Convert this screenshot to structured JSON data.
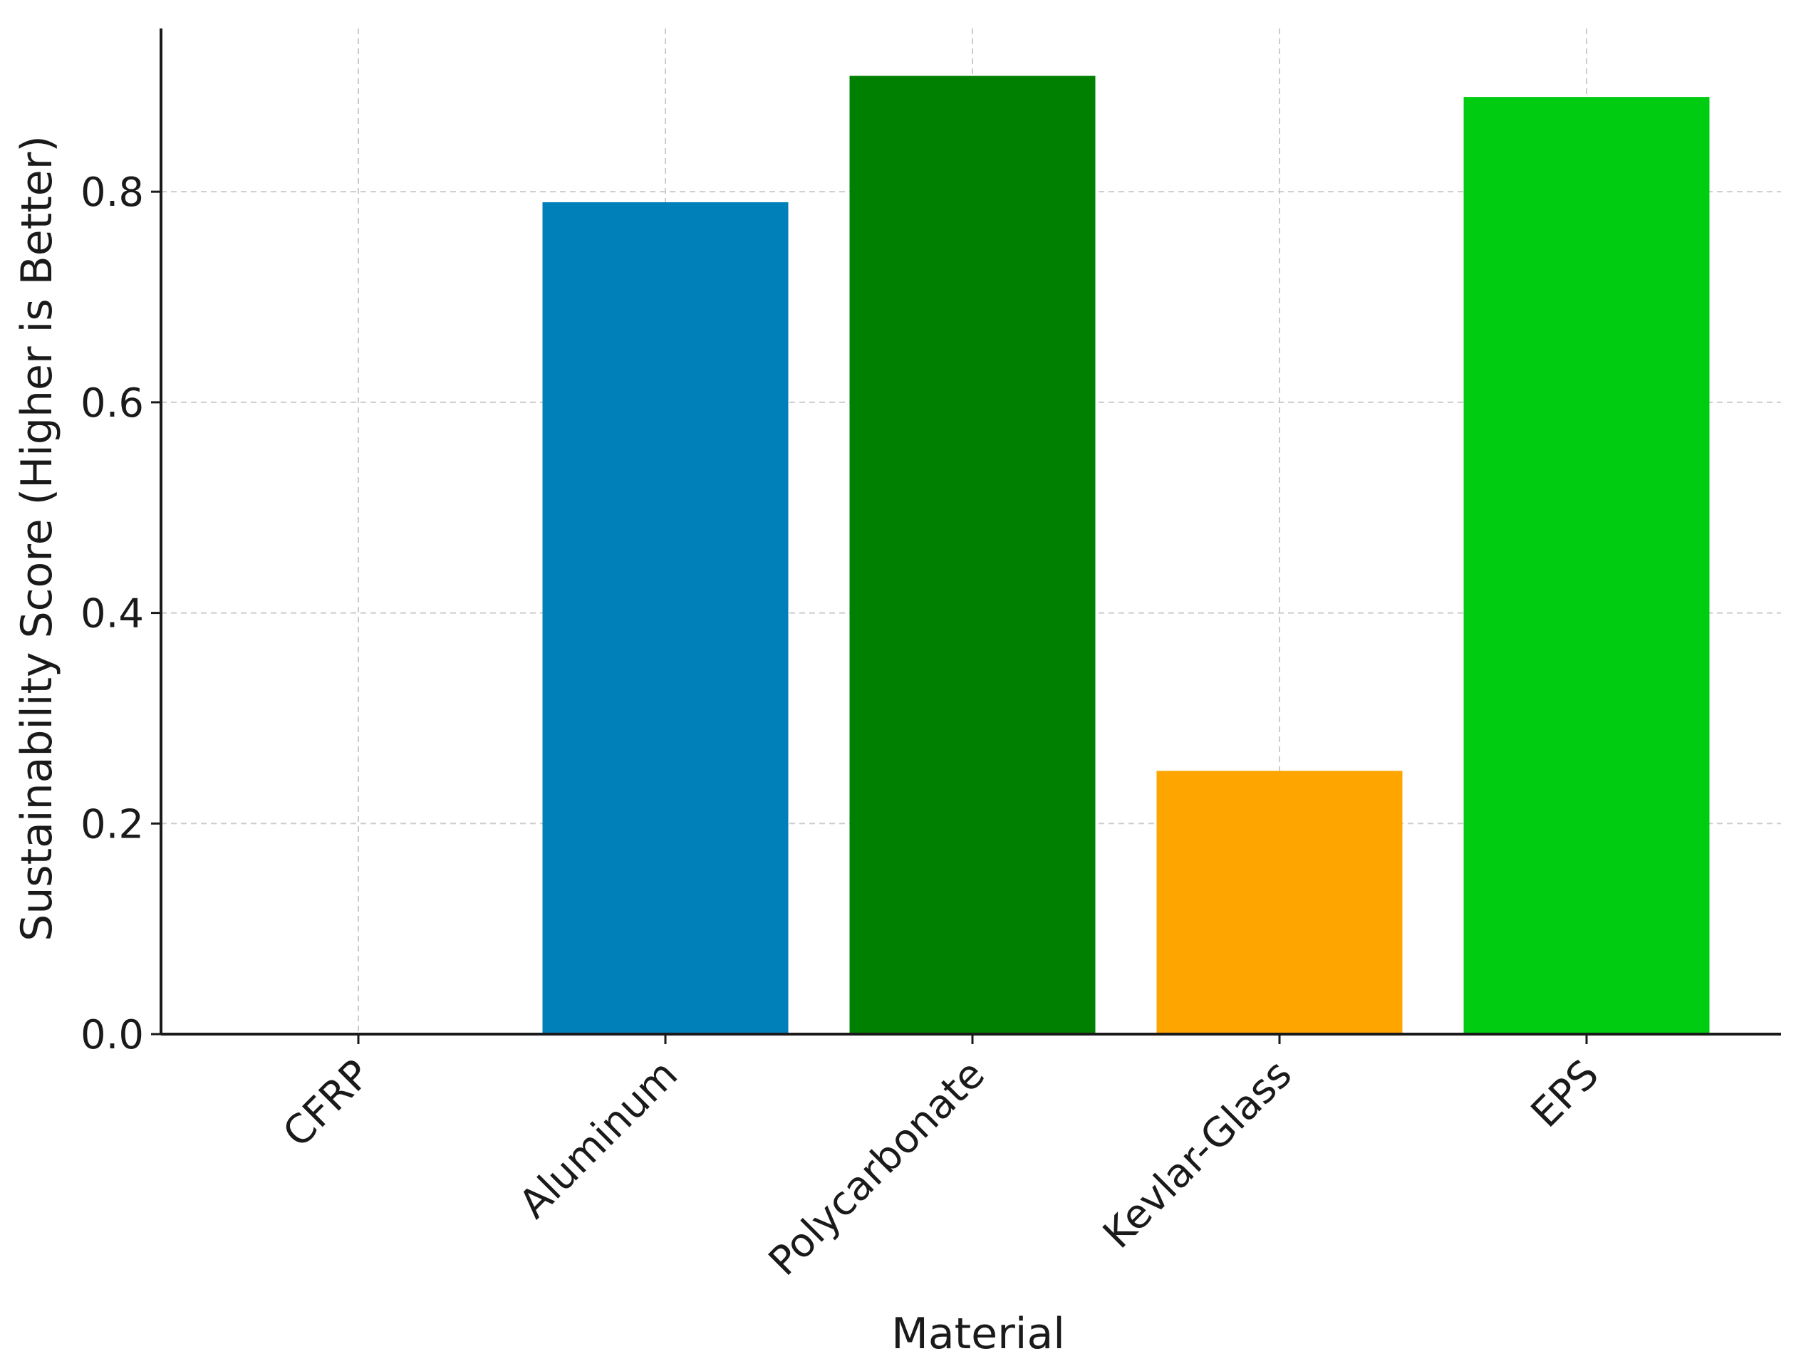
{
  "chart_data": {
    "type": "bar",
    "title": "",
    "xlabel": "Material",
    "ylabel": "Sustainability Score (Higher is Better)",
    "categories": [
      "CFRP",
      "Aluminum",
      "Polycarbonate",
      "Kevlar-Glass",
      "EPS"
    ],
    "values": [
      0.0,
      0.79,
      0.91,
      0.25,
      0.89
    ],
    "colors": [
      "#e03c31",
      "#0080b8",
      "#008000",
      "#ffa500",
      "#00cc11"
    ],
    "ylim": [
      0,
      0.955
    ],
    "yticks": [
      "0.0",
      "0.2",
      "0.4",
      "0.6",
      "0.8"
    ],
    "ytick_values": [
      0.0,
      0.2,
      0.4,
      0.6,
      0.8
    ],
    "grid": true,
    "x_tick_rotation": "45 degrees"
  }
}
